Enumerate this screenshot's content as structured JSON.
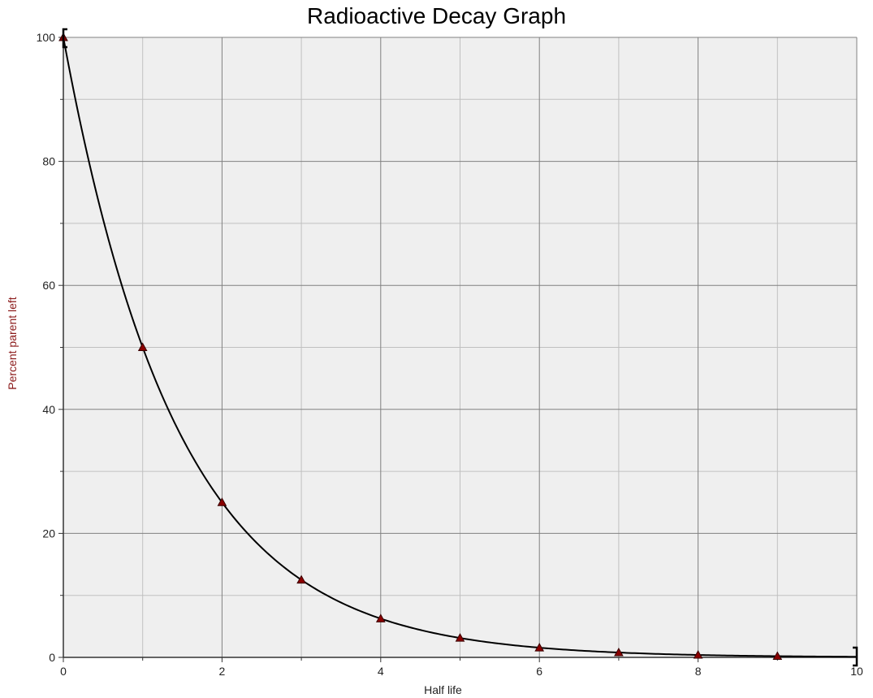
{
  "chart_data": {
    "type": "scatter",
    "title": "Radioactive Decay Graph",
    "xlabel": "Half life",
    "ylabel": "Percent parent left",
    "xlim": [
      0,
      10
    ],
    "ylim": [
      0,
      100
    ],
    "x_major_ticks": [
      0,
      2,
      4,
      6,
      8,
      10
    ],
    "y_major_ticks": [
      0,
      20,
      40,
      60,
      80,
      100
    ],
    "x_tick_labels": [
      "0",
      "2",
      "4",
      "6",
      "8",
      "10"
    ],
    "y_tick_labels": [
      "0",
      "20",
      "40",
      "60",
      "80",
      "100"
    ],
    "grid": true,
    "series": [
      {
        "marker": "triangle",
        "x": [
          0,
          1,
          2,
          3,
          4,
          5,
          6,
          7,
          8,
          9
        ],
        "y": [
          100,
          50,
          25,
          12.5,
          6.25,
          3.125,
          1.5625,
          0.78125,
          0.390625,
          0.1953125
        ]
      }
    ],
    "fit_curve": {
      "type": "exponential-decay",
      "y0": 100,
      "base": 0.5,
      "x_range": [
        0,
        10
      ]
    },
    "colors": {
      "plot_background": "#efefef",
      "major_grid": "#808080",
      "minor_grid": "#c0c0c0",
      "marker_fill": "#8b0000",
      "marker_stroke": "#3a0000",
      "curve": "#000000",
      "ylabel_color": "#8b1a1a",
      "xlabel_color": "#222222"
    }
  }
}
